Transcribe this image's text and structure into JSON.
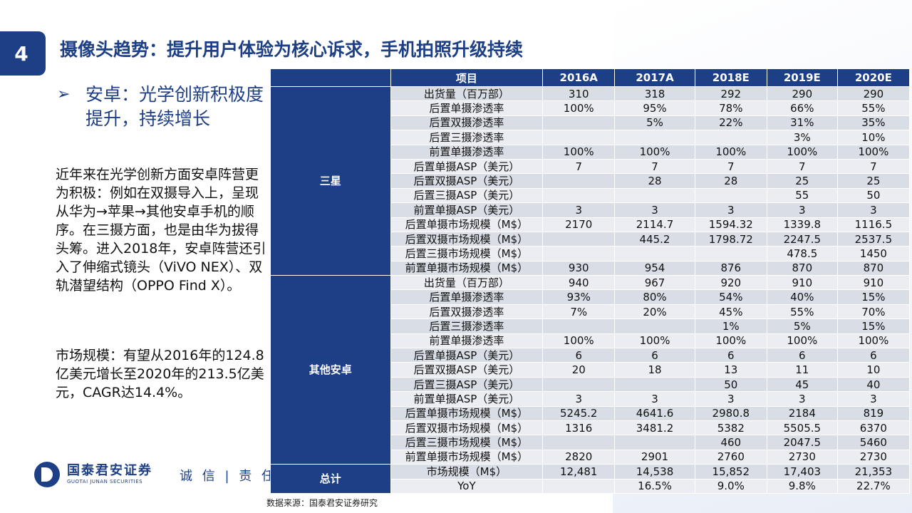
{
  "slide": {
    "number": "4",
    "title": "摄像头趋势：提升用户体验为核心诉求，手机拍照升级持续",
    "bullet": "安卓：光学创新积极度提升，持续增长",
    "paragraph1": "近年来在光学创新方面安卓阵营更为积极：例如在双摄导入上，呈现从华为→苹果→其他安卓手机的顺序。在三摄方面，也是由华为拔得头筹。进入2018年，安卓阵营还引入了伸缩式镜头（ViVO NEX）、双轨潜望结构（OPPO Find X）。",
    "paragraph2": "市场规模：有望从2016年的124.8亿美元增长至2020年的213.5亿美元，CAGR达14.4%。",
    "logo_cn": "国泰君安证券",
    "logo_en": "GUOTAI JUNAN SECURITIES",
    "slogan": "诚 信 | 责 任 | 亲",
    "source": "数据来源：国泰君安证券研究",
    "accent_color": "#1d3f86"
  },
  "table": {
    "headers": [
      "项目",
      "2016A",
      "2017A",
      "2018E",
      "2019E",
      "2020E"
    ],
    "groups": [
      {
        "name": "三星",
        "rows": [
          [
            "出货量（百万部）",
            "310",
            "318",
            "292",
            "290",
            "290"
          ],
          [
            "后置单摄渗透率",
            "100%",
            "95%",
            "78%",
            "66%",
            "55%"
          ],
          [
            "后置双摄渗透率",
            "",
            "5%",
            "22%",
            "31%",
            "35%"
          ],
          [
            "后置三摄渗透率",
            "",
            "",
            "",
            "3%",
            "10%"
          ],
          [
            "前置单摄渗透率",
            "100%",
            "100%",
            "100%",
            "100%",
            "100%"
          ],
          [
            "后置单摄ASP（美元）",
            "7",
            "7",
            "7",
            "7",
            "7"
          ],
          [
            "后置双摄ASP（美元）",
            "",
            "28",
            "28",
            "25",
            "25"
          ],
          [
            "后置三摄ASP（美元）",
            "",
            "",
            "",
            "55",
            "50"
          ],
          [
            "前置单摄ASP（美元）",
            "3",
            "3",
            "3",
            "3",
            "3"
          ],
          [
            "后置单摄市场规模（M$）",
            "2170",
            "2114.7",
            "1594.32",
            "1339.8",
            "1116.5"
          ],
          [
            "后置双摄市场规模（M$）",
            "",
            "445.2",
            "1798.72",
            "2247.5",
            "2537.5"
          ],
          [
            "后置三摄市场规模（M$）",
            "",
            "",
            "",
            "478.5",
            "1450"
          ],
          [
            "前置单摄市场规模（M$）",
            "930",
            "954",
            "876",
            "870",
            "870"
          ]
        ]
      },
      {
        "name": "其他安卓",
        "rows": [
          [
            "出货量（百万部）",
            "940",
            "967",
            "920",
            "910",
            "910"
          ],
          [
            "后置单摄渗透率",
            "93%",
            "80%",
            "54%",
            "40%",
            "15%"
          ],
          [
            "后置双摄渗透率",
            "7%",
            "20%",
            "45%",
            "55%",
            "70%"
          ],
          [
            "后置三摄渗透率",
            "",
            "",
            "1%",
            "5%",
            "15%"
          ],
          [
            "前置单摄渗透率",
            "100%",
            "100%",
            "100%",
            "100%",
            "100%"
          ],
          [
            "后置单摄ASP（美元）",
            "6",
            "6",
            "6",
            "6",
            "6"
          ],
          [
            "后置双摄ASP（美元）",
            "20",
            "18",
            "13",
            "11",
            "10"
          ],
          [
            "后置三摄ASP（美元）",
            "",
            "",
            "50",
            "45",
            "40"
          ],
          [
            "前置单摄ASP（美元）",
            "3",
            "3",
            "3",
            "3",
            "3"
          ],
          [
            "后置单摄市场规模（M$）",
            "5245.2",
            "4641.6",
            "2980.8",
            "2184",
            "819"
          ],
          [
            "后置双摄市场规模（M$）",
            "1316",
            "3481.2",
            "5382",
            "5505.5",
            "6370"
          ],
          [
            "后置三摄市场规模（M$）",
            "",
            "",
            "460",
            "2047.5",
            "5460"
          ],
          [
            "前置单摄市场规模（M$）",
            "2820",
            "2901",
            "2760",
            "2730",
            "2730"
          ]
        ]
      },
      {
        "name": "总计",
        "rows": [
          [
            "市场规模（M$）",
            "12,481",
            "14,538",
            "15,852",
            "17,403",
            "21,353"
          ],
          [
            "YoY",
            "",
            "16.5%",
            "9.0%",
            "9.8%",
            "22.7%"
          ]
        ]
      }
    ]
  }
}
